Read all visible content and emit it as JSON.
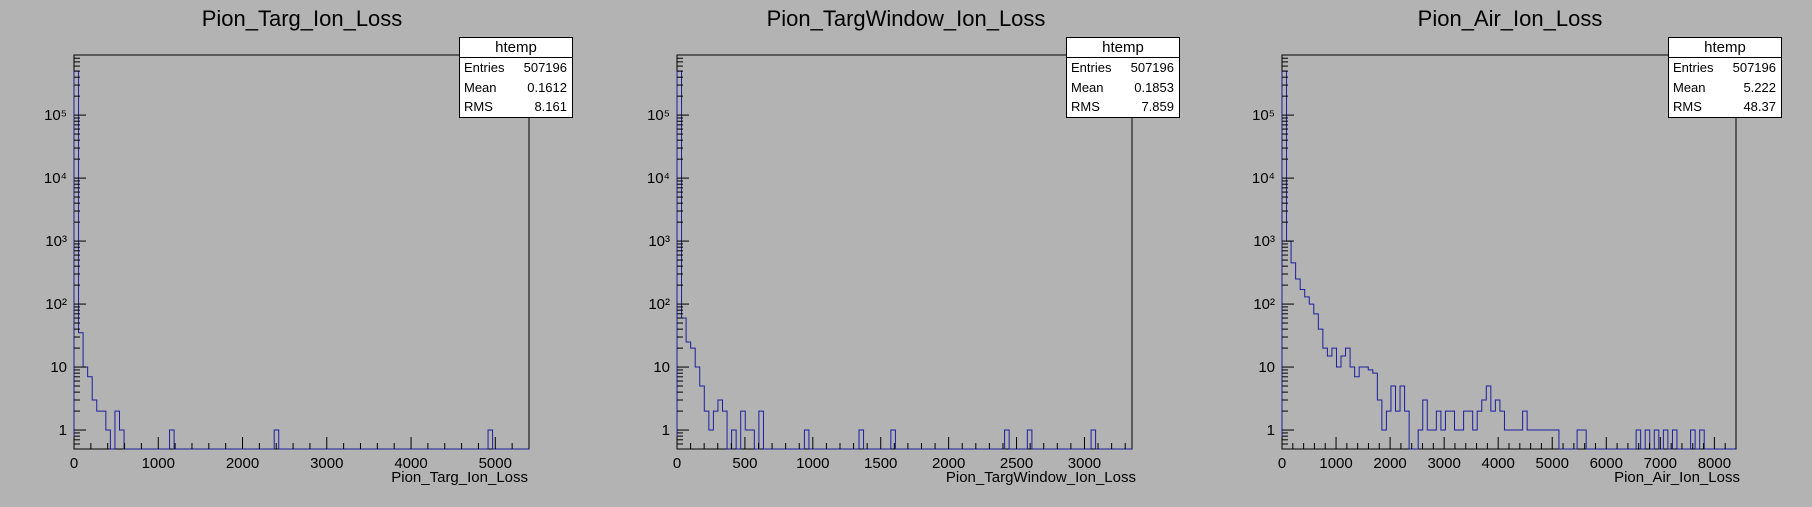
{
  "chart_data": [
    {
      "type": "histogram",
      "title": "Pion_Targ_Ion_Loss",
      "xlabel": "Pion_Targ_Ion_Loss",
      "ylabel": "",
      "y_scale": "log",
      "xlim": [
        0,
        5400
      ],
      "ylim": [
        0.5,
        900000
      ],
      "x_ticks": [
        0,
        1000,
        2000,
        3000,
        4000,
        5000
      ],
      "y_ticks": [
        {
          "value": 1,
          "label": "1"
        },
        {
          "value": 10,
          "label": "10"
        },
        {
          "value": 100,
          "label": "10²"
        },
        {
          "value": 1000,
          "label": "10³"
        },
        {
          "value": 10000,
          "label": "10⁴"
        },
        {
          "value": 100000,
          "label": "10⁵"
        }
      ],
      "bin_width": 54,
      "bins": [
        [
          0,
          500000
        ],
        [
          54,
          35
        ],
        [
          108,
          10
        ],
        [
          162,
          7
        ],
        [
          216,
          3
        ],
        [
          270,
          2
        ],
        [
          324,
          2
        ],
        [
          378,
          1
        ],
        [
          486,
          2
        ],
        [
          540,
          1
        ],
        [
          1134,
          1
        ],
        [
          2376,
          1
        ],
        [
          4914,
          1
        ]
      ],
      "stats_box": {
        "name": "htemp",
        "Entries": "507196",
        "Mean": "0.1612",
        "RMS": "8.161"
      },
      "grid": false,
      "legend": "top-right"
    },
    {
      "type": "histogram",
      "title": "Pion_TargWindow_Ion_Loss",
      "xlabel": "Pion_TargWindow_Ion_Loss",
      "ylabel": "",
      "y_scale": "log",
      "xlim": [
        0,
        3350
      ],
      "ylim": [
        0.5,
        900000
      ],
      "x_ticks": [
        0,
        500,
        1000,
        1500,
        2000,
        2500,
        3000
      ],
      "y_ticks": [
        {
          "value": 1,
          "label": "1"
        },
        {
          "value": 10,
          "label": "10"
        },
        {
          "value": 100,
          "label": "10²"
        },
        {
          "value": 1000,
          "label": "10³"
        },
        {
          "value": 10000,
          "label": "10⁴"
        },
        {
          "value": 100000,
          "label": "10⁵"
        }
      ],
      "bin_width": 33.5,
      "bins": [
        [
          0,
          500000
        ],
        [
          33.5,
          60
        ],
        [
          67,
          25
        ],
        [
          100.5,
          20
        ],
        [
          134,
          10
        ],
        [
          167.5,
          5
        ],
        [
          201,
          2
        ],
        [
          234.5,
          1
        ],
        [
          268,
          2
        ],
        [
          301.5,
          3
        ],
        [
          335,
          2
        ],
        [
          402,
          1
        ],
        [
          469,
          2
        ],
        [
          502.5,
          1
        ],
        [
          536,
          1
        ],
        [
          603,
          2
        ],
        [
          938,
          1
        ],
        [
          1340,
          1
        ],
        [
          1574.5,
          1
        ],
        [
          2412,
          1
        ],
        [
          2579.5,
          1
        ],
        [
          3048.5,
          1
        ]
      ],
      "stats_box": {
        "name": "htemp",
        "Entries": "507196",
        "Mean": "0.1853",
        "RMS": "7.859"
      },
      "grid": false,
      "legend": "top-right"
    },
    {
      "type": "histogram",
      "title": "Pion_Air_Ion_Loss",
      "xlabel": "Pion_Air_Ion_Loss",
      "ylabel": "",
      "y_scale": "log",
      "xlim": [
        0,
        8400
      ],
      "ylim": [
        0.5,
        900000
      ],
      "x_ticks": [
        0,
        1000,
        2000,
        3000,
        4000,
        5000,
        6000,
        7000,
        8000
      ],
      "y_ticks": [
        {
          "value": 1,
          "label": "1"
        },
        {
          "value": 10,
          "label": "10"
        },
        {
          "value": 100,
          "label": "10²"
        },
        {
          "value": 1000,
          "label": "10³"
        },
        {
          "value": 10000,
          "label": "10⁴"
        },
        {
          "value": 100000,
          "label": "10⁵"
        }
      ],
      "bin_width": 84,
      "bins": [
        [
          0,
          500000
        ],
        [
          84,
          1000
        ],
        [
          168,
          450
        ],
        [
          252,
          250
        ],
        [
          336,
          170
        ],
        [
          420,
          130
        ],
        [
          504,
          100
        ],
        [
          588,
          70
        ],
        [
          672,
          40
        ],
        [
          756,
          20
        ],
        [
          840,
          15
        ],
        [
          924,
          20
        ],
        [
          1008,
          10
        ],
        [
          1092,
          15
        ],
        [
          1176,
          20
        ],
        [
          1260,
          10
        ],
        [
          1344,
          7
        ],
        [
          1428,
          10
        ],
        [
          1512,
          10
        ],
        [
          1596,
          9
        ],
        [
          1680,
          8
        ],
        [
          1764,
          3
        ],
        [
          1848,
          1
        ],
        [
          1932,
          2
        ],
        [
          2016,
          5
        ],
        [
          2100,
          2
        ],
        [
          2184,
          5
        ],
        [
          2268,
          2
        ],
        [
          2352,
          0.5
        ],
        [
          2436,
          0.5
        ],
        [
          2520,
          1
        ],
        [
          2604,
          3
        ],
        [
          2688,
          1
        ],
        [
          2772,
          1
        ],
        [
          2856,
          2
        ],
        [
          2940,
          1
        ],
        [
          3024,
          2
        ],
        [
          3108,
          2
        ],
        [
          3192,
          1
        ],
        [
          3276,
          1
        ],
        [
          3360,
          2
        ],
        [
          3444,
          2
        ],
        [
          3528,
          1
        ],
        [
          3612,
          2
        ],
        [
          3696,
          3
        ],
        [
          3780,
          5
        ],
        [
          3864,
          2
        ],
        [
          3948,
          3
        ],
        [
          4032,
          2
        ],
        [
          4116,
          1
        ],
        [
          4200,
          1
        ],
        [
          4284,
          1
        ],
        [
          4368,
          1
        ],
        [
          4452,
          2
        ],
        [
          4536,
          1
        ],
        [
          4620,
          1
        ],
        [
          4704,
          1
        ],
        [
          4788,
          1
        ],
        [
          4872,
          1
        ],
        [
          4956,
          1
        ],
        [
          5040,
          1
        ],
        [
          5460,
          1
        ],
        [
          5544,
          1
        ],
        [
          6552,
          1
        ],
        [
          6720,
          1
        ],
        [
          6888,
          1
        ],
        [
          7056,
          1
        ],
        [
          7224,
          1
        ],
        [
          7560,
          1
        ],
        [
          7728,
          1
        ]
      ],
      "stats_box": {
        "name": "htemp",
        "Entries": "507196",
        "Mean": "5.222",
        "RMS": "48.37"
      },
      "grid": false,
      "legend": "top-right"
    }
  ],
  "colors": {
    "background": "#b3b3b3",
    "hist_line": "#1e1e9e",
    "axis": "#000000",
    "stats_fill": "#ffffff"
  }
}
